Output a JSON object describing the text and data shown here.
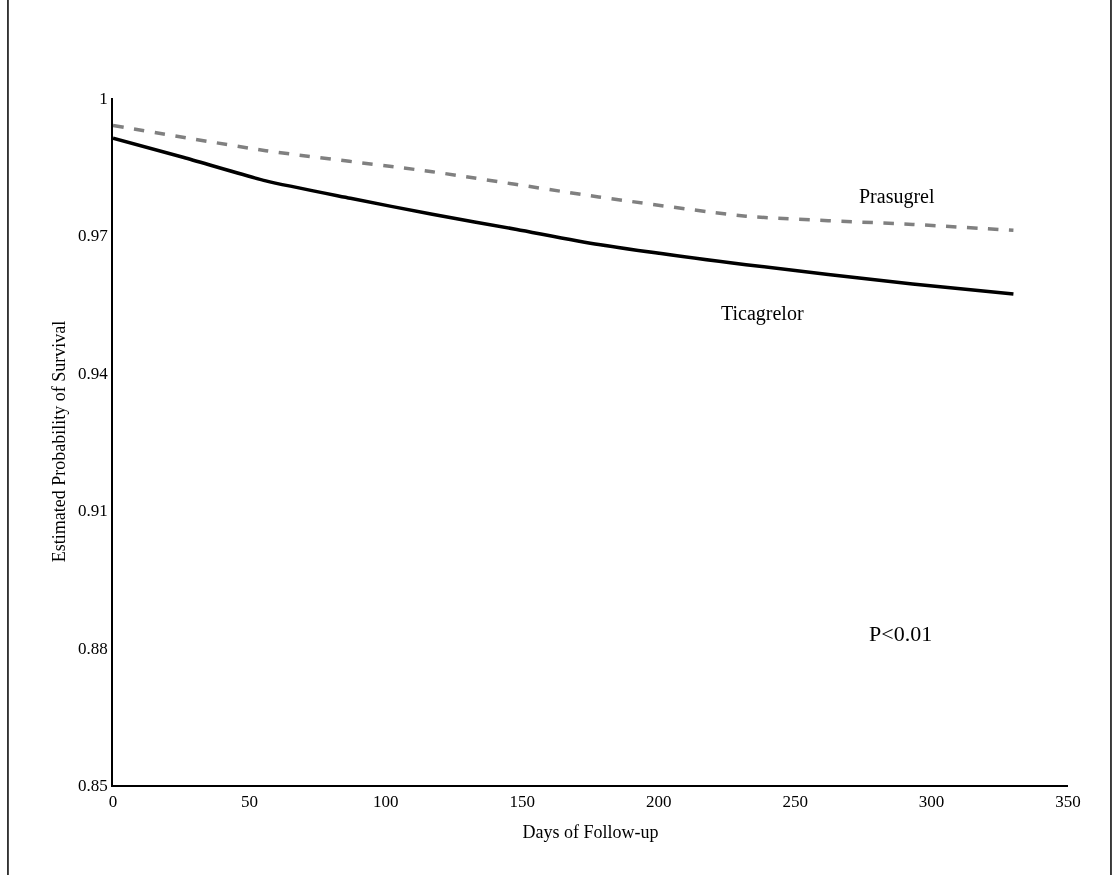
{
  "chart_data": {
    "type": "line",
    "xlabel": "Days of Follow-up",
    "ylabel": "Estimated Probability of Survival",
    "xlim": [
      0,
      350
    ],
    "xticks": [
      0,
      50,
      100,
      150,
      200,
      250,
      300,
      350
    ],
    "ylim": [
      0.85,
      1
    ],
    "yticks": [
      0.85,
      0.88,
      0.91,
      0.94,
      0.97,
      1
    ],
    "legend": false,
    "marker": "none",
    "series": [
      {
        "name": "Prasugrel",
        "color": "#808080",
        "line_style": "dashed",
        "x": [
          0,
          56,
          117,
          178,
          232,
          293,
          330
        ],
        "values": [
          0.994,
          0.9885,
          0.9839,
          0.9784,
          0.9742,
          0.9724,
          0.9711
        ]
      },
      {
        "name": "Ticagrelor",
        "color": "#000000",
        "line_style": "solid",
        "x": [
          0,
          26,
          56,
          87,
          117,
          148,
          178,
          232,
          293,
          330
        ],
        "values": [
          0.9912,
          0.987,
          0.9819,
          0.9781,
          0.9746,
          0.9713,
          0.968,
          0.9636,
          0.9594,
          0.9572
        ]
      }
    ],
    "annotations": [
      "P<0.01"
    ]
  }
}
